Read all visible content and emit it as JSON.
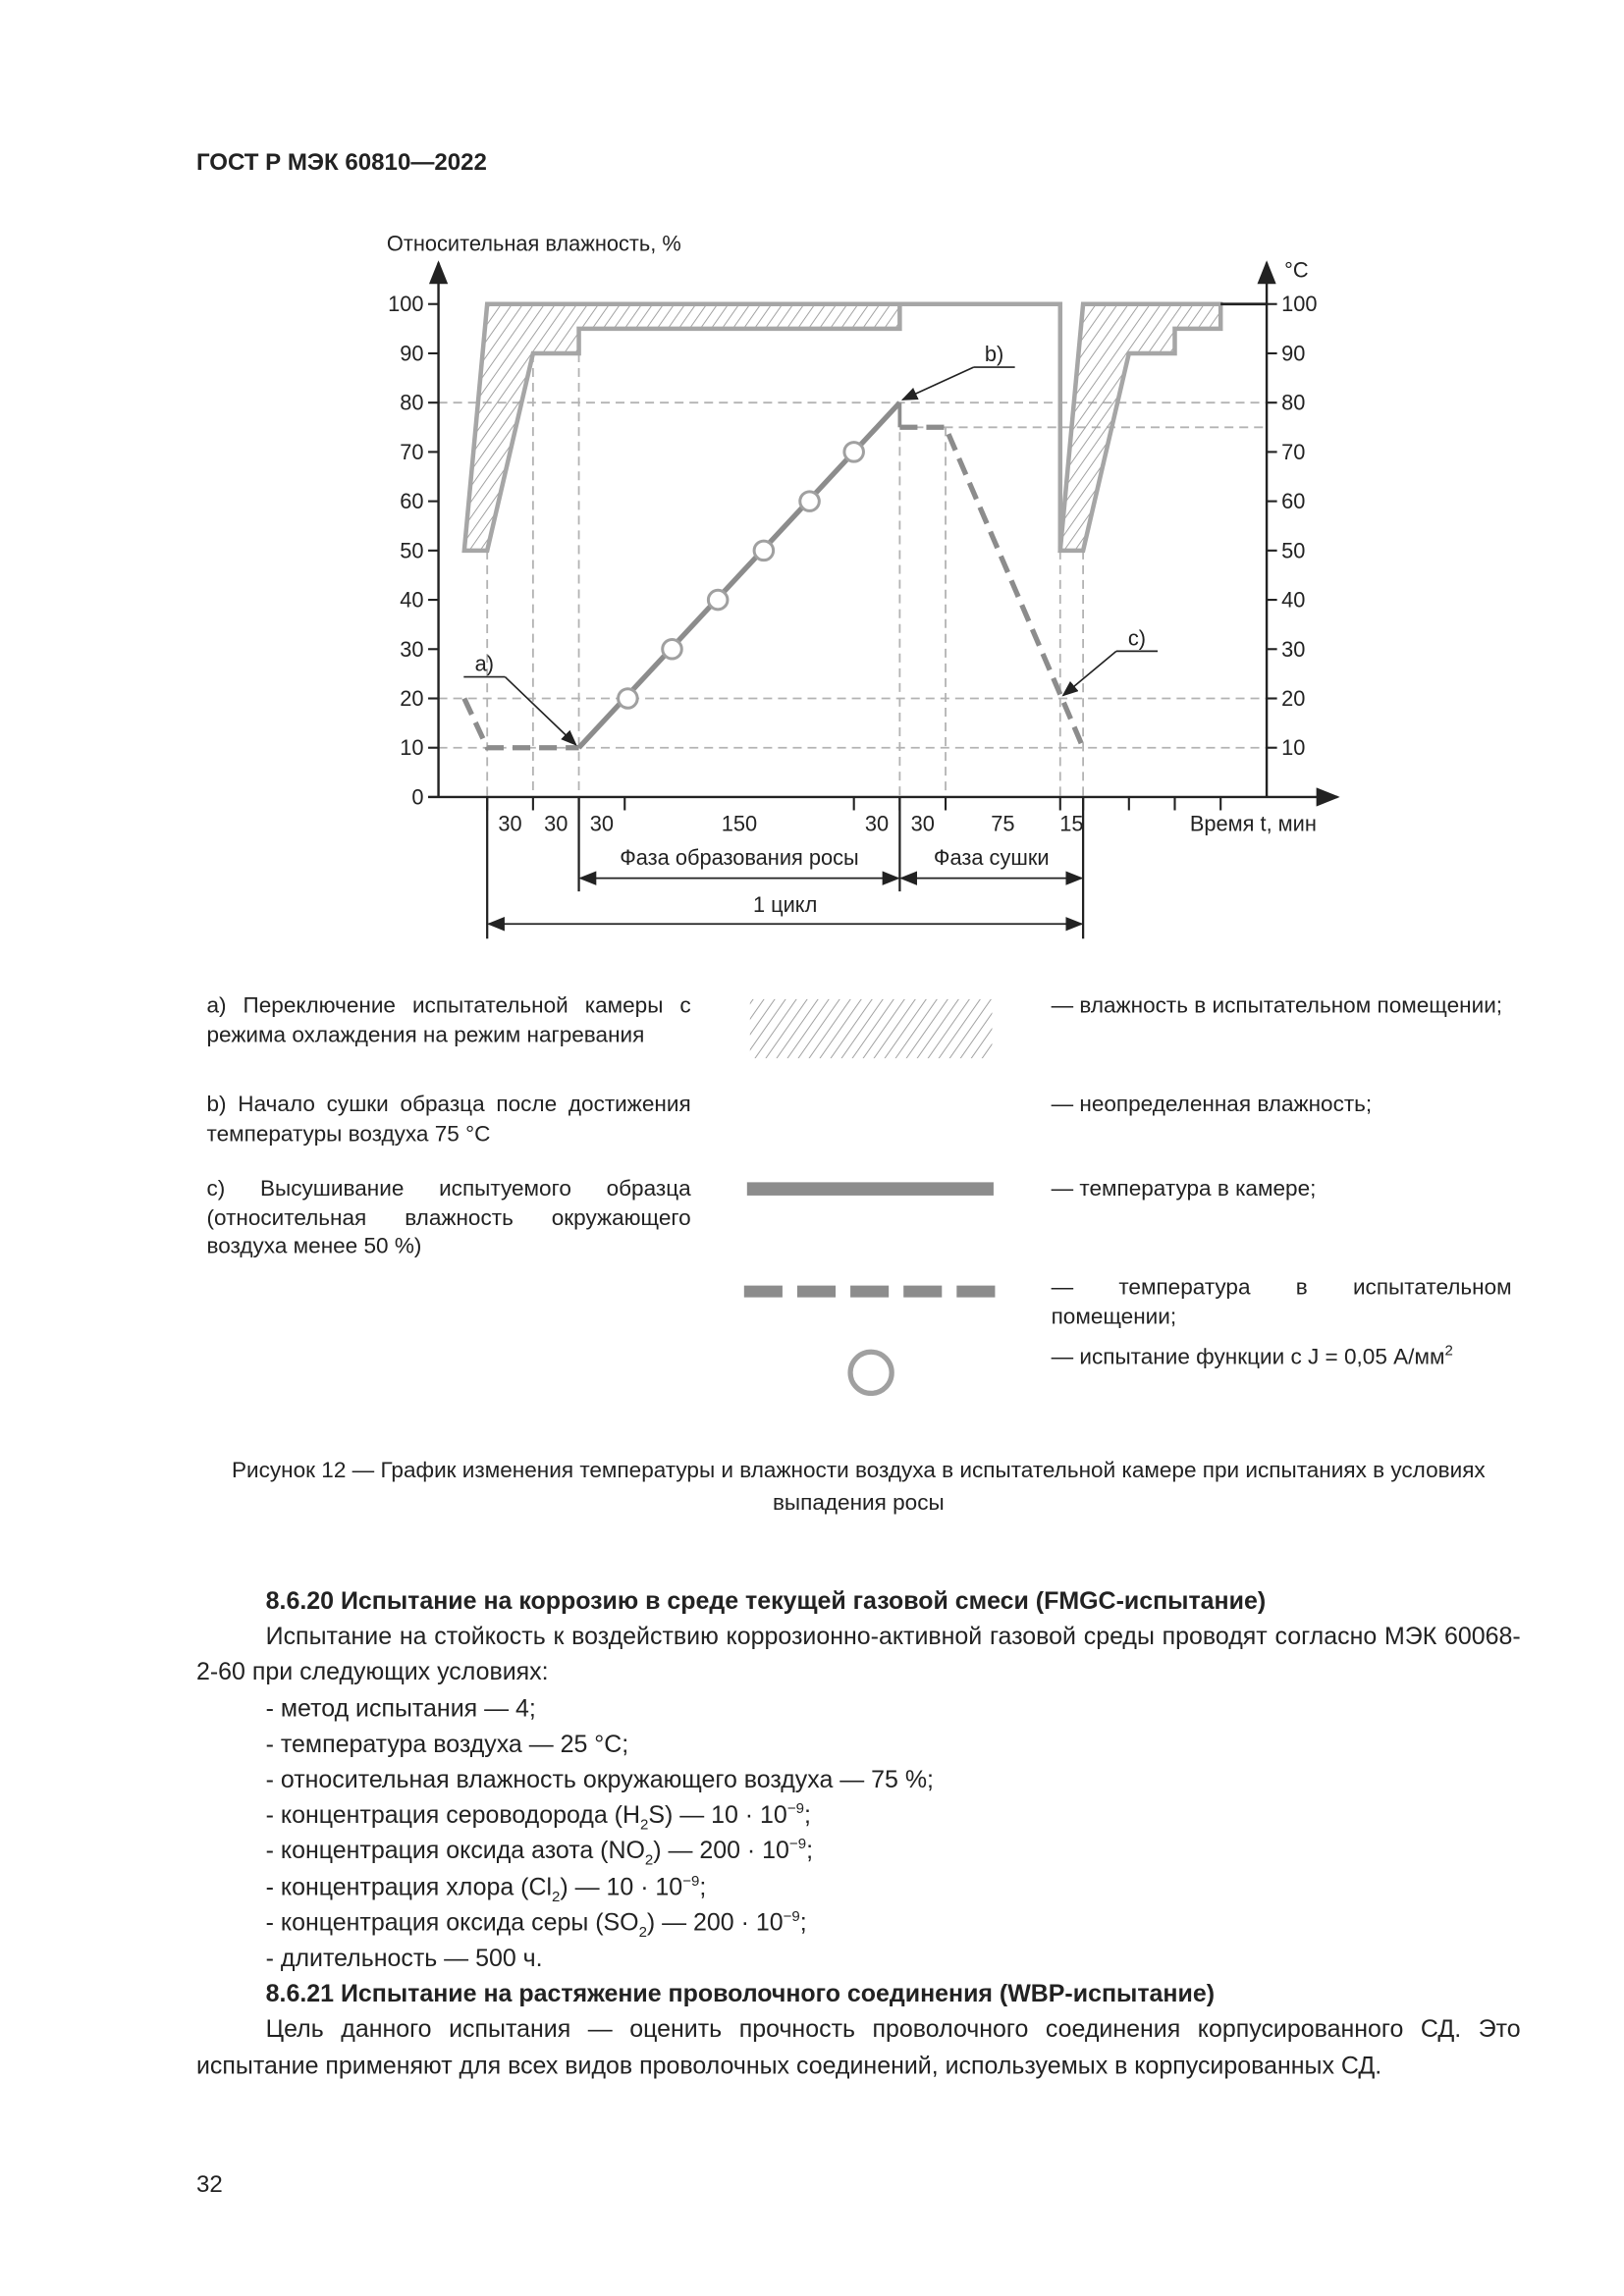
{
  "header": {
    "doc_id": "ГОСТ Р МЭК 60810—2022"
  },
  "chart_data": {
    "type": "line",
    "ylabel_left": "Относительная влажность, %",
    "ylabel_right": "°C",
    "xlabel": "Время t, мин",
    "ylim": [
      0,
      100
    ],
    "yticks": [
      0,
      10,
      20,
      30,
      40,
      50,
      60,
      70,
      80,
      90,
      100
    ],
    "yticks_right": [
      10,
      20,
      30,
      40,
      50,
      60,
      70,
      80,
      90,
      100
    ],
    "xticks_min": [
      0,
      30,
      60,
      90,
      240,
      270,
      300,
      375,
      390,
      420,
      450,
      480
    ],
    "interval_labels": [
      {
        "label": "30",
        "range": [
          0,
          30
        ]
      },
      {
        "label": "30",
        "range": [
          30,
          60
        ]
      },
      {
        "label": "30",
        "range": [
          60,
          90
        ]
      },
      {
        "label": "150",
        "range": [
          90,
          240
        ]
      },
      {
        "label": "30",
        "range": [
          240,
          270
        ]
      },
      {
        "label": "30",
        "range": [
          270,
          300
        ]
      },
      {
        "label": "75",
        "range": [
          300,
          375
        ]
      },
      {
        "label": "15",
        "range": [
          375,
          390
        ]
      }
    ],
    "phases": [
      {
        "label": "Фаза образования росы",
        "range": [
          60,
          270
        ]
      },
      {
        "label": "Фаза сушки",
        "range": [
          270,
          390
        ]
      }
    ],
    "cycle": {
      "label": "1 цикл",
      "range": [
        0,
        390
      ]
    },
    "series": [
      {
        "name": "температура в камере",
        "style": "solid",
        "points": [
          [
            60,
            10
          ],
          [
            270,
            80
          ]
        ]
      },
      {
        "name": "температура в испытательном помещении",
        "style": "dashed",
        "points": [
          [
            -15,
            20
          ],
          [
            0,
            10
          ],
          [
            60,
            10
          ]
        ]
      },
      {
        "name": "температура в испытательном помещении",
        "style": "dashed",
        "points": [
          [
            270,
            75
          ],
          [
            300,
            75
          ],
          [
            390,
            10
          ]
        ]
      }
    ],
    "function_tests": [
      [
        92,
        20
      ],
      [
        121,
        30
      ],
      [
        151,
        40
      ],
      [
        181,
        50
      ],
      [
        211,
        60
      ],
      [
        240,
        70
      ]
    ],
    "humidity_room": [
      [
        [
          -15,
          50
        ],
        [
          0,
          100
        ],
        [
          270,
          100
        ],
        [
          270,
          95
        ],
        [
          60,
          95
        ],
        [
          60,
          90
        ],
        [
          30,
          90
        ],
        [
          0,
          50
        ]
      ],
      [
        [
          375,
          50
        ],
        [
          390,
          100
        ],
        [
          480,
          100
        ],
        [
          480,
          95
        ],
        [
          450,
          95
        ],
        [
          450,
          90
        ],
        [
          420,
          90
        ],
        [
          390,
          50
        ]
      ]
    ],
    "humidity_undefined": [
      [
        270,
        100
      ],
      [
        375,
        100
      ],
      [
        375,
        50
      ]
    ],
    "ref_lines_y": [
      80,
      75,
      20,
      10
    ],
    "annotations": [
      {
        "label": "a)",
        "at": [
          60,
          10
        ]
      },
      {
        "label": "b)",
        "at": [
          270,
          80
        ]
      },
      {
        "label": "c)",
        "at": [
          375,
          20
        ]
      }
    ],
    "colors": {
      "series": "#8c8c8c",
      "humidity": "#a6a6a6",
      "grid": "#b3b3b3",
      "axis": "#222222"
    }
  },
  "legend": {
    "notes": [
      "a) Переключение испытательной камеры с режима охлаждения на режим нагревания",
      "b) Начало сушки образца после достижения температуры воздуха 75 °С",
      "c) Высушивание испытуемого образца (относительная влажность окружающего воздуха менее 50 %)"
    ],
    "keys": [
      "— влажность в испытательном помещении;",
      "— неопределенная влажность;",
      "— температура в камере;",
      "— температура в испытательном помещении;",
      "— испытание функции с J = 0,05 А/мм",
      "2"
    ]
  },
  "caption": "Рисунок 12 — График изменения температуры и влажности воздуха в испытательной камере при испытаниях в условиях выпадения росы",
  "section_8_6_20": {
    "title": "8.6.20  Испытание на коррозию в среде текущей газовой смеси (FMGC-испытание)",
    "intro": "Испытание на стойкость к воздействию коррозионно-активной газовой среды проводят согласно МЭК 60068-2-60 при следующих условиях:",
    "items": [
      "- метод испытания — 4;",
      "- температура воздуха — 25 °С;",
      "- относительная влажность окружающего воздуха — 75 %;"
    ],
    "h2s": [
      "- концентрация сероводорода (H",
      "2",
      "S) — 10 · 10",
      "−9",
      ";"
    ],
    "no2": [
      "- концентрация оксида азота (NO",
      "2",
      ") — 200 · 10",
      "−9",
      ";"
    ],
    "cl2": [
      "- концентрация хлора (Cl",
      "2",
      ") — 10 · 10",
      "−9",
      ";"
    ],
    "so2": [
      "- концентрация оксида серы (SO",
      "2",
      ") — 200 · 10",
      "−9",
      ";"
    ],
    "duration": "- длительность — 500 ч."
  },
  "section_8_6_21": {
    "title": "8.6.21  Испытание на растяжение проволочного соединения (WBP-испытание)",
    "text": "Цель данного испытания — оценить прочность проволочного соединения корпусированного СД. Это испытание применяют для всех видов проволочных соединений, используемых в корпусированных СД."
  },
  "page_number": "32"
}
